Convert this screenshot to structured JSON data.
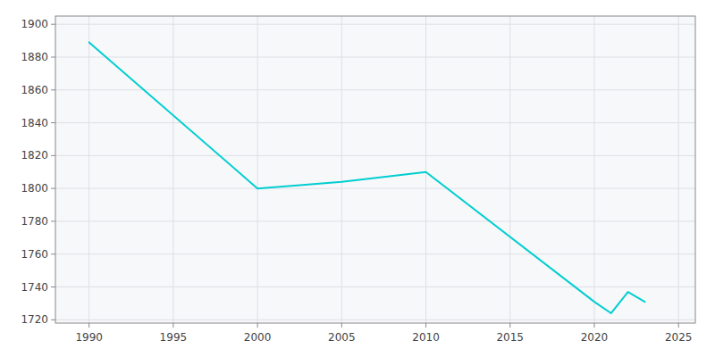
{
  "chart_data": {
    "type": "line",
    "x": [
      1990,
      2000,
      2005,
      2010,
      2020,
      2021,
      2022,
      2023
    ],
    "values": [
      1889,
      1800,
      1804,
      1810,
      1731,
      1724,
      1737,
      1731
    ],
    "color": "#00CED1",
    "xlim": [
      1988,
      2026
    ],
    "ylim": [
      1718,
      1905
    ],
    "xticks": [
      1990,
      1995,
      2000,
      2005,
      2010,
      2015,
      2020,
      2025
    ],
    "yticks": [
      1720,
      1740,
      1760,
      1780,
      1800,
      1820,
      1840,
      1860,
      1880,
      1900
    ],
    "grid": true
  }
}
